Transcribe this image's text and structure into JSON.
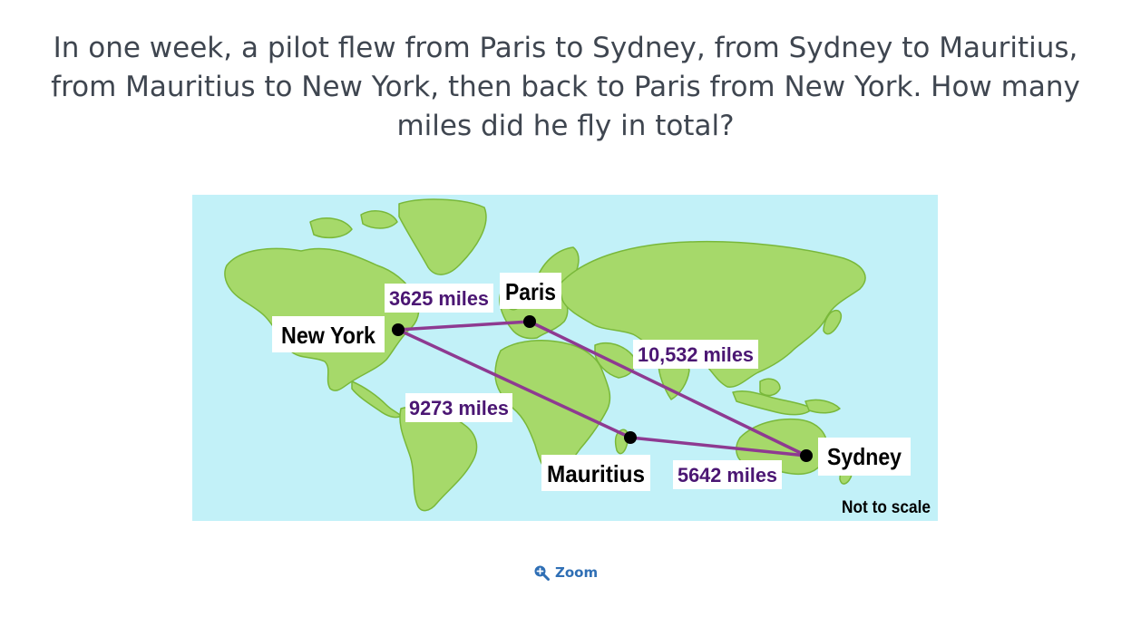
{
  "question": {
    "text": "In one week, a pilot flew from Paris to Sydney, from Sydney to Mauritius, from Mauritius to New York, then back to Paris from New York. How many miles did he fly in total?"
  },
  "map": {
    "colors": {
      "ocean": "#c2f1f8",
      "land": "#a6d96a",
      "coast": "#79b83a",
      "route": "#8e3a91",
      "distance_text": "#4b1673",
      "city_text": "#000000"
    },
    "cities": {
      "new_york": "New York",
      "paris": "Paris",
      "mauritius": "Mauritius",
      "sydney": "Sydney"
    },
    "distances": {
      "new_york_paris": "3625 miles",
      "paris_sydney": "10,532 miles",
      "new_york_mauritius": "9273 miles",
      "mauritius_sydney": "5642 miles"
    },
    "note": "Not to scale"
  },
  "zoom": {
    "label": "Zoom",
    "icon": "zoom-in-icon"
  }
}
